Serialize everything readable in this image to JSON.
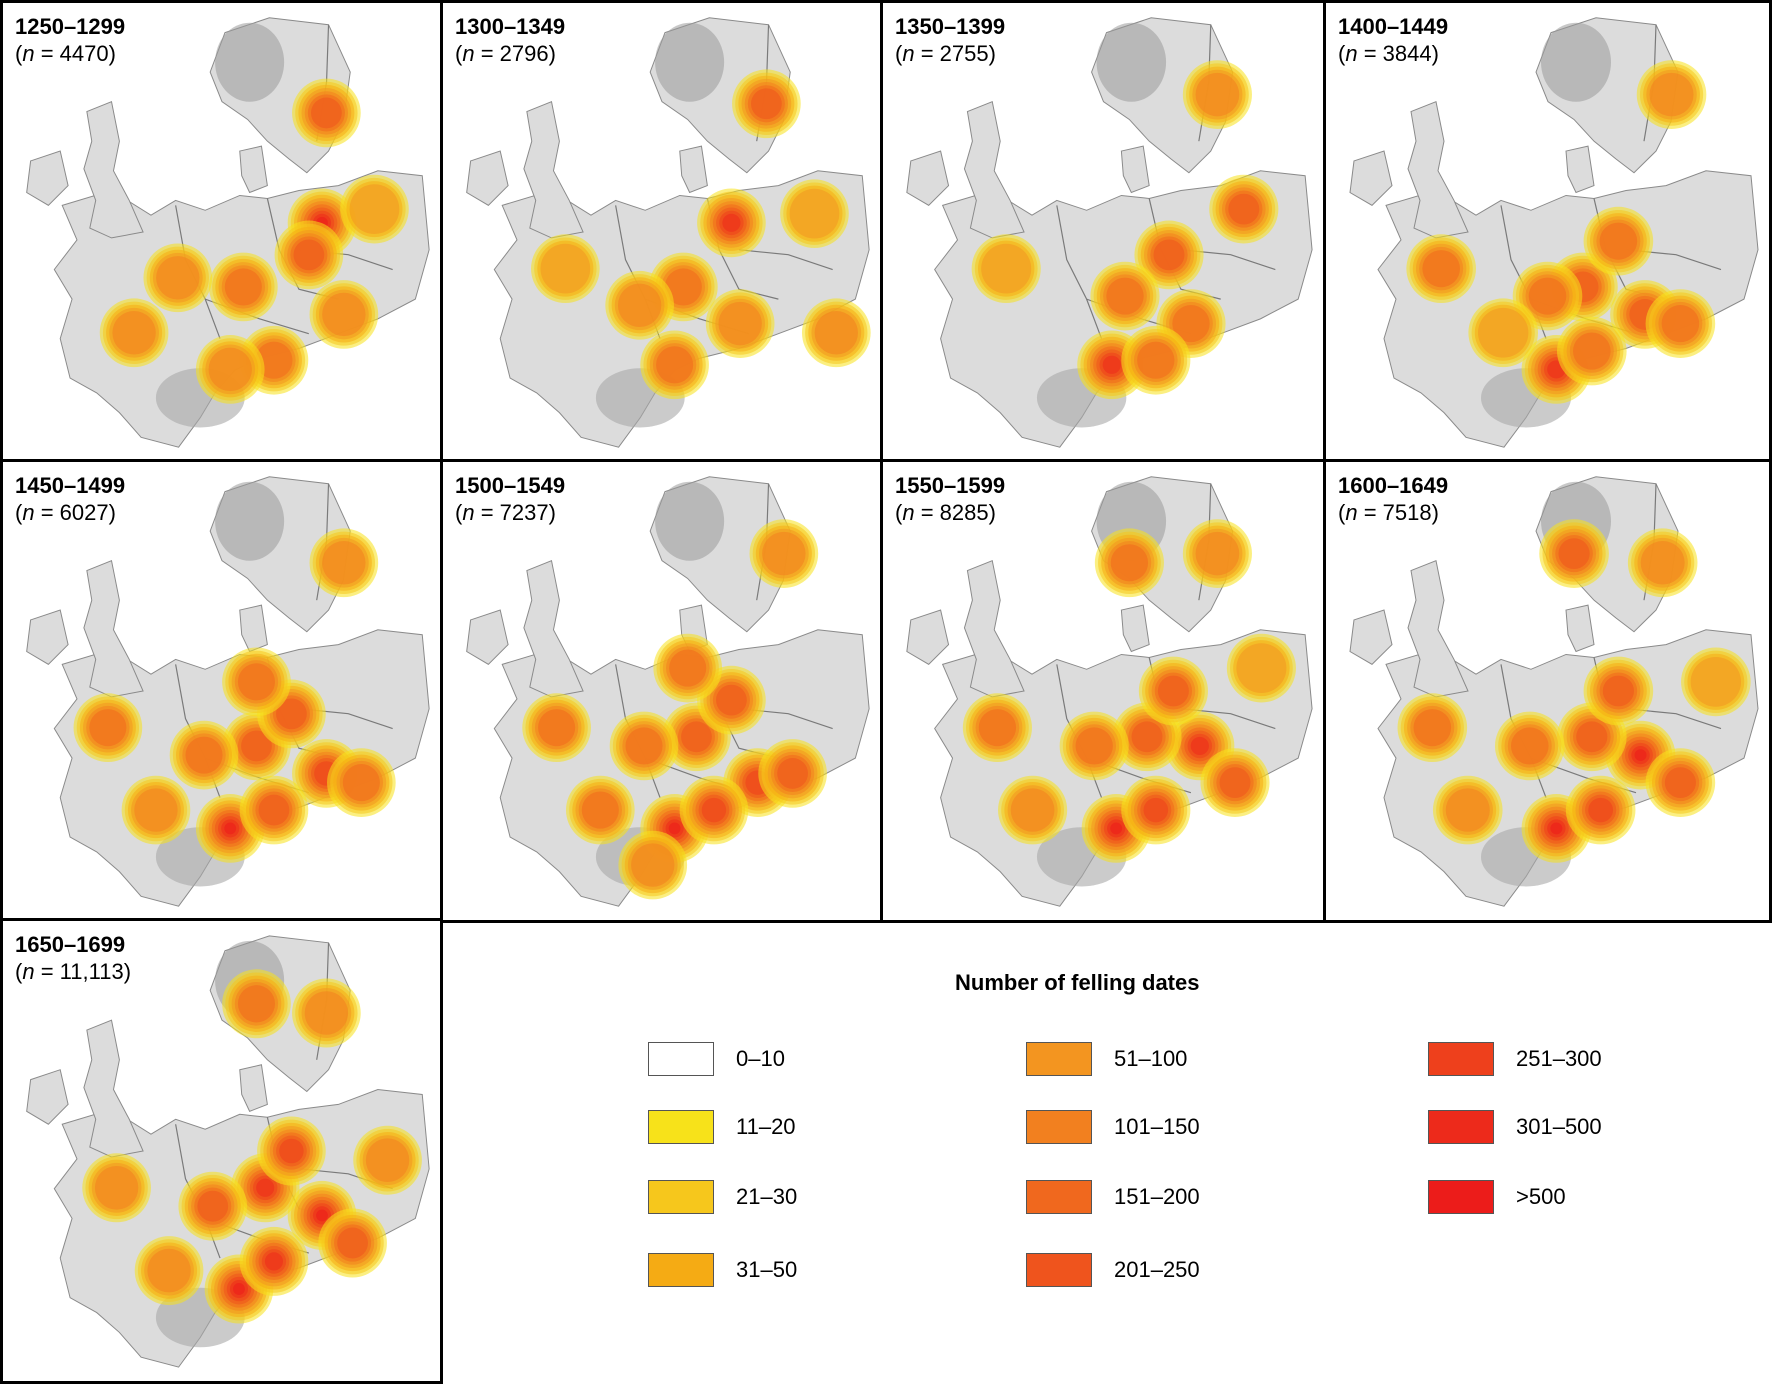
{
  "panels": [
    {
      "period": "1250–1299",
      "n_var": "n",
      "n_value": "4470",
      "hotspots": [
        [
          0.73,
          0.48,
          0.95
        ],
        [
          0.7,
          0.55,
          0.7
        ],
        [
          0.4,
          0.6,
          0.5
        ],
        [
          0.55,
          0.62,
          0.6
        ],
        [
          0.3,
          0.72,
          0.45
        ],
        [
          0.62,
          0.78,
          0.55
        ],
        [
          0.78,
          0.68,
          0.5
        ],
        [
          0.74,
          0.24,
          0.65
        ],
        [
          0.52,
          0.8,
          0.45
        ],
        [
          0.85,
          0.45,
          0.4
        ]
      ]
    },
    {
      "period": "1300–1349",
      "n_var": "n",
      "n_value": "2796",
      "hotspots": [
        [
          0.66,
          0.48,
          0.9
        ],
        [
          0.55,
          0.62,
          0.55
        ],
        [
          0.53,
          0.79,
          0.6
        ],
        [
          0.68,
          0.7,
          0.5
        ],
        [
          0.74,
          0.22,
          0.65
        ],
        [
          0.28,
          0.58,
          0.35
        ],
        [
          0.85,
          0.46,
          0.4
        ],
        [
          0.45,
          0.66,
          0.45
        ],
        [
          0.9,
          0.72,
          0.45
        ]
      ]
    },
    {
      "period": "1350–1399",
      "n_var": "n",
      "n_value": "2755",
      "hotspots": [
        [
          0.52,
          0.79,
          0.85
        ],
        [
          0.65,
          0.55,
          0.65
        ],
        [
          0.55,
          0.64,
          0.6
        ],
        [
          0.7,
          0.7,
          0.6
        ],
        [
          0.82,
          0.45,
          0.65
        ],
        [
          0.62,
          0.78,
          0.55
        ],
        [
          0.28,
          0.58,
          0.35
        ],
        [
          0.76,
          0.2,
          0.45
        ]
      ]
    },
    {
      "period": "1400–1449",
      "n_var": "n",
      "n_value": "3844",
      "hotspots": [
        [
          0.52,
          0.8,
          0.85
        ],
        [
          0.58,
          0.62,
          0.65
        ],
        [
          0.66,
          0.52,
          0.6
        ],
        [
          0.72,
          0.68,
          0.65
        ],
        [
          0.8,
          0.7,
          0.55
        ],
        [
          0.26,
          0.58,
          0.55
        ],
        [
          0.6,
          0.76,
          0.6
        ],
        [
          0.5,
          0.64,
          0.55
        ],
        [
          0.78,
          0.2,
          0.5
        ],
        [
          0.4,
          0.72,
          0.4
        ]
      ]
    },
    {
      "period": "1450–1499",
      "n_var": "n",
      "n_value": "6027",
      "hotspots": [
        [
          0.52,
          0.8,
          0.95
        ],
        [
          0.58,
          0.62,
          0.7
        ],
        [
          0.66,
          0.55,
          0.7
        ],
        [
          0.74,
          0.68,
          0.8
        ],
        [
          0.82,
          0.7,
          0.6
        ],
        [
          0.62,
          0.76,
          0.7
        ],
        [
          0.24,
          0.58,
          0.55
        ],
        [
          0.35,
          0.76,
          0.5
        ],
        [
          0.46,
          0.64,
          0.55
        ],
        [
          0.58,
          0.48,
          0.6
        ],
        [
          0.78,
          0.22,
          0.45
        ]
      ]
    },
    {
      "period": "1500–1549",
      "n_var": "n",
      "n_value": "7237",
      "hotspots": [
        [
          0.53,
          0.8,
          0.95
        ],
        [
          0.58,
          0.6,
          0.7
        ],
        [
          0.66,
          0.52,
          0.65
        ],
        [
          0.72,
          0.7,
          0.8
        ],
        [
          0.8,
          0.68,
          0.65
        ],
        [
          0.62,
          0.76,
          0.75
        ],
        [
          0.26,
          0.58,
          0.55
        ],
        [
          0.36,
          0.76,
          0.6
        ],
        [
          0.46,
          0.62,
          0.6
        ],
        [
          0.48,
          0.88,
          0.5
        ],
        [
          0.56,
          0.45,
          0.6
        ],
        [
          0.78,
          0.2,
          0.45
        ]
      ]
    },
    {
      "period": "1550–1599",
      "n_var": "n",
      "n_value": "8285",
      "hotspots": [
        [
          0.53,
          0.8,
          0.95
        ],
        [
          0.72,
          0.62,
          0.85
        ],
        [
          0.6,
          0.6,
          0.7
        ],
        [
          0.66,
          0.5,
          0.65
        ],
        [
          0.8,
          0.7,
          0.65
        ],
        [
          0.62,
          0.76,
          0.75
        ],
        [
          0.26,
          0.58,
          0.55
        ],
        [
          0.34,
          0.76,
          0.5
        ],
        [
          0.48,
          0.62,
          0.6
        ],
        [
          0.56,
          0.22,
          0.6
        ],
        [
          0.76,
          0.2,
          0.45
        ],
        [
          0.86,
          0.45,
          0.4
        ]
      ]
    },
    {
      "period": "1600–1649",
      "n_var": "n",
      "n_value": "7518",
      "hotspots": [
        [
          0.52,
          0.8,
          0.95
        ],
        [
          0.71,
          0.64,
          0.95
        ],
        [
          0.6,
          0.6,
          0.7
        ],
        [
          0.66,
          0.5,
          0.65
        ],
        [
          0.8,
          0.7,
          0.65
        ],
        [
          0.62,
          0.76,
          0.75
        ],
        [
          0.24,
          0.58,
          0.55
        ],
        [
          0.32,
          0.76,
          0.45
        ],
        [
          0.46,
          0.62,
          0.6
        ],
        [
          0.56,
          0.2,
          0.65
        ],
        [
          0.76,
          0.22,
          0.5
        ],
        [
          0.88,
          0.48,
          0.4
        ]
      ]
    },
    {
      "period": "1650–1699",
      "n_var": "n",
      "n_value": "11,113",
      "hotspots": [
        [
          0.54,
          0.8,
          0.95
        ],
        [
          0.73,
          0.64,
          0.95
        ],
        [
          0.6,
          0.58,
          0.9
        ],
        [
          0.66,
          0.5,
          0.8
        ],
        [
          0.8,
          0.7,
          0.7
        ],
        [
          0.62,
          0.74,
          0.85
        ],
        [
          0.26,
          0.58,
          0.5
        ],
        [
          0.38,
          0.76,
          0.5
        ],
        [
          0.48,
          0.62,
          0.7
        ],
        [
          0.58,
          0.18,
          0.6
        ],
        [
          0.74,
          0.2,
          0.5
        ],
        [
          0.88,
          0.52,
          0.45
        ]
      ]
    }
  ],
  "legend": {
    "title": "Number of felling dates",
    "items": [
      {
        "label": "0–10",
        "color": "#ffffff"
      },
      {
        "label": "11–20",
        "color": "#f7e21a"
      },
      {
        "label": "21–30",
        "color": "#f6c71c"
      },
      {
        "label": "31–50",
        "color": "#f5ab14"
      },
      {
        "label": "51–100",
        "color": "#f39520"
      },
      {
        "label": "101–150",
        "color": "#f2801f"
      },
      {
        "label": "151–200",
        "color": "#f0681e"
      },
      {
        "label": "201–250",
        "color": "#ef541d"
      },
      {
        "label": "251–300",
        "color": "#ee401c"
      },
      {
        "label": "301–500",
        "color": "#ed2a1b"
      },
      {
        "label": ">500",
        "color": "#ec1c1a"
      }
    ]
  }
}
